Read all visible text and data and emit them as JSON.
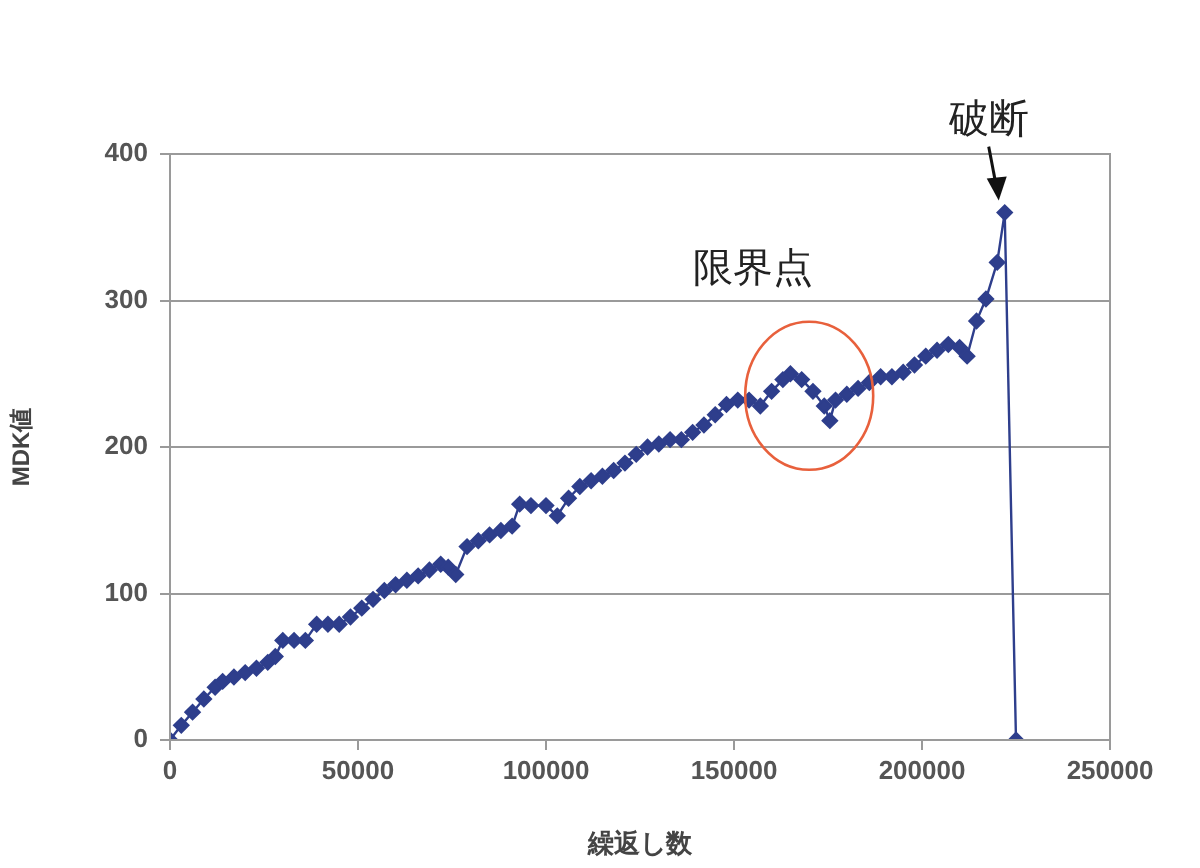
{
  "chart_data": {
    "type": "line",
    "xlabel": "繰返し数",
    "ylabel": "MDK値",
    "xlim": [
      0,
      250000
    ],
    "xticks": [
      0,
      50000,
      100000,
      150000,
      200000,
      250000
    ],
    "ylim": [
      0,
      400
    ],
    "yticks": [
      0,
      100,
      200,
      300,
      400
    ],
    "grid": "y",
    "legend": false,
    "marker": "diamond",
    "line_style": "solid",
    "annotations": [
      {
        "text": "破断",
        "x": 222000,
        "y": 360
      },
      {
        "text": "限界点",
        "x": 170000,
        "y": 235
      }
    ],
    "series": [
      {
        "color": "#2e3e8c",
        "x": [
          0,
          3000,
          6000,
          9000,
          12000,
          14000,
          17000,
          20000,
          23000,
          26000,
          28000,
          30000,
          33000,
          36000,
          39000,
          42000,
          45000,
          48000,
          51000,
          54000,
          57000,
          60000,
          63000,
          66000,
          69000,
          72000,
          74000,
          76000,
          79000,
          82000,
          85000,
          88000,
          91000,
          93000,
          96000,
          100000,
          103000,
          106000,
          109000,
          112000,
          115000,
          118000,
          121000,
          124000,
          127000,
          130000,
          133000,
          136000,
          139000,
          142000,
          145000,
          148000,
          151000,
          154000,
          157000,
          160000,
          163000,
          165000,
          168000,
          171000,
          174000,
          175500,
          177000,
          180000,
          183000,
          186000,
          189000,
          192000,
          195000,
          198000,
          201000,
          204000,
          207000,
          210000,
          212000,
          214500,
          217000,
          220000,
          222000,
          225000
        ],
        "values": [
          0,
          10,
          19,
          28,
          36,
          40,
          43,
          46,
          49,
          53,
          57,
          68,
          68,
          68,
          79,
          79,
          79,
          84,
          90,
          96,
          102,
          106,
          109,
          112,
          116,
          120,
          118,
          113,
          132,
          136,
          140,
          143,
          146,
          161,
          160,
          160,
          153,
          165,
          173,
          177,
          180,
          184,
          189,
          195,
          200,
          202,
          205,
          205,
          210,
          215,
          222,
          229,
          232,
          232,
          228,
          238,
          246,
          250,
          246,
          238,
          228,
          218,
          232,
          236,
          240,
          244,
          248,
          248,
          251,
          256,
          262,
          266,
          270,
          268,
          262,
          286,
          301,
          326,
          360,
          0
        ]
      }
    ]
  }
}
